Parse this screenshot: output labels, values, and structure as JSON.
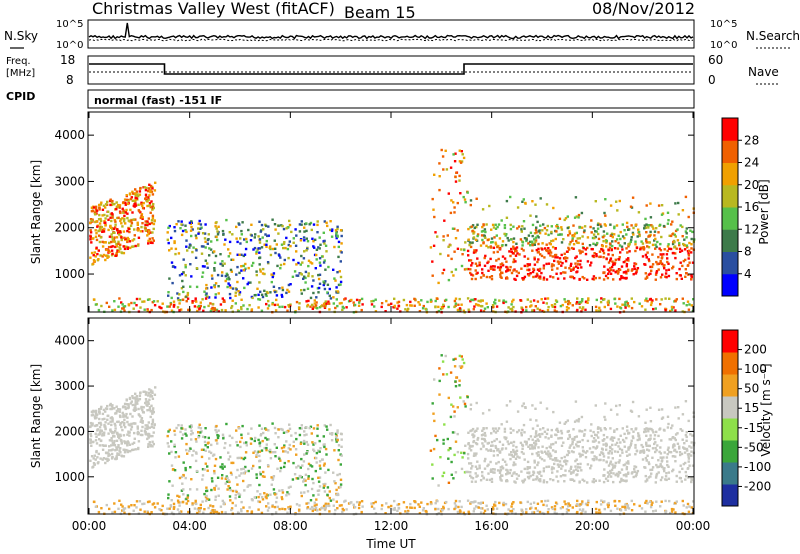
{
  "header": {
    "title": "Christmas Valley West (fitACF)",
    "beam": "Beam 15",
    "date": "08/Nov/2012"
  },
  "noise_panel": {
    "left_label": "N.Sky",
    "right_label": "N.Search",
    "left_ticks": [
      "10^5",
      "10^0"
    ],
    "right_ticks": [
      "10^5",
      "10^0"
    ]
  },
  "freq_panel": {
    "left_label_line1": "Freq.",
    "left_label_line2": "[MHz]",
    "right_label": "Nave",
    "left_ticks": [
      "18",
      "8"
    ],
    "right_ticks": [
      "60",
      "0"
    ],
    "freq_segments": [
      {
        "from_hour": 0,
        "to_hour": 3.0,
        "level": "high"
      },
      {
        "from_hour": 3.0,
        "to_hour": 14.9,
        "level": "low"
      },
      {
        "from_hour": 14.9,
        "to_hour": 24,
        "level": "high"
      }
    ]
  },
  "cpid": {
    "label": "CPID",
    "text": "normal (fast) -151 IF"
  },
  "chart_data": [
    {
      "type": "heatmap",
      "name": "power",
      "ylabel": "Slant Range [km]",
      "yticks": [
        "4000",
        "3000",
        "2000",
        "1000"
      ],
      "ylim": [
        180,
        4500
      ],
      "colorbar_label": "Power [dB]",
      "colorbar_ticks": [
        "28",
        "24",
        "20",
        "16",
        "12",
        "8",
        "4"
      ],
      "colors": [
        "#0000ff",
        "#2a4fa0",
        "#3d7a4a",
        "#56c04a",
        "#b8b820",
        "#f0a000",
        "#f06000",
        "#ff0000"
      ]
    },
    {
      "type": "heatmap",
      "name": "velocity",
      "ylabel": "Slant Range [km]",
      "yticks": [
        "4000",
        "3000",
        "2000",
        "1000"
      ],
      "ylim": [
        180,
        4500
      ],
      "xlabel": "Time UT",
      "xticks": [
        "00:00",
        "04:00",
        "08:00",
        "12:00",
        "16:00",
        "20:00",
        "00:00"
      ],
      "xlim": [
        0,
        24
      ],
      "colorbar_label": "Velocity [m s⁻¹]",
      "colorbar_ticks": [
        "200",
        "100",
        "50",
        "15",
        "-15",
        "-50",
        "-100",
        "-200"
      ],
      "colors": [
        "#1e2fa0",
        "#3a7a8a",
        "#3aa63a",
        "#8ee04a",
        "#c8c8c0",
        "#f0a020",
        "#f07000",
        "#ff0000"
      ]
    }
  ]
}
